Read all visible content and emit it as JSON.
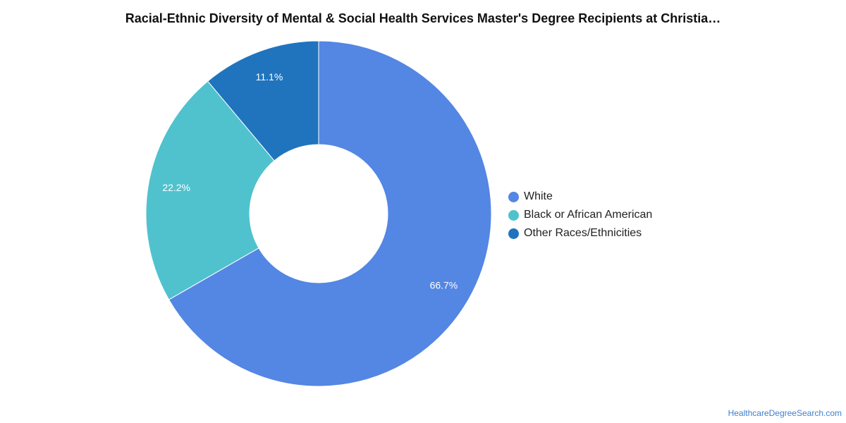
{
  "chart_data": {
    "type": "pie",
    "variant": "donut",
    "title": "Racial-Ethnic Diversity of Mental & Social Health Services Master's Degree Recipients at Christia…",
    "slices": [
      {
        "label": "White",
        "value": 66.7,
        "display": "66.7%",
        "color": "#5486e3"
      },
      {
        "label": "Black or African American",
        "value": 22.2,
        "display": "22.2%",
        "color": "#50c2ce"
      },
      {
        "label": "Other Races/Ethnicities",
        "value": 11.1,
        "display": "11.1%",
        "color": "#1f74bd"
      }
    ],
    "legend_position": "right"
  },
  "source": "HealthcareDegreeSearch.com"
}
